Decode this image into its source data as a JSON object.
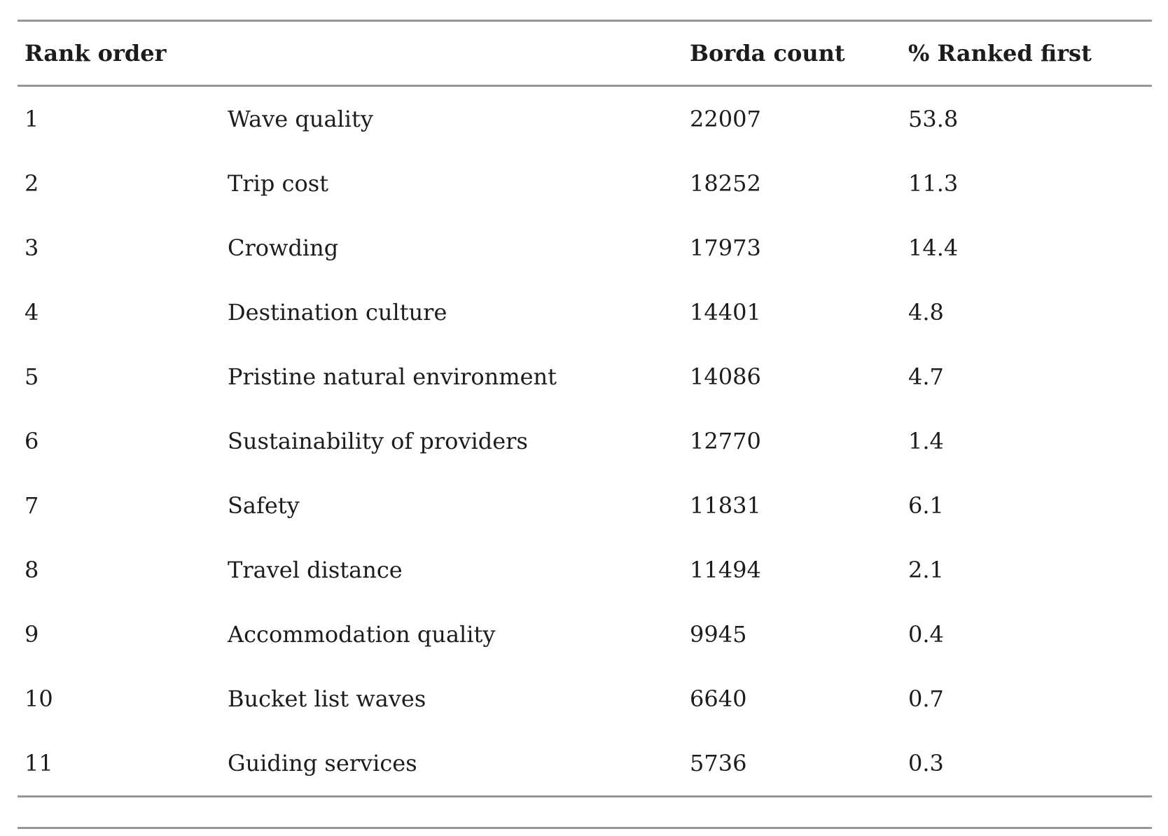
{
  "table": {
    "columns": {
      "rank": "Rank order",
      "attribute": "",
      "borda": "Borda count",
      "pct_first": "% Ranked first"
    },
    "rows": [
      {
        "rank": "1",
        "attribute": "Wave quality",
        "borda": "22007",
        "pct_first": "53.8"
      },
      {
        "rank": "2",
        "attribute": "Trip cost",
        "borda": "18252",
        "pct_first": "11.3"
      },
      {
        "rank": "3",
        "attribute": "Crowding",
        "borda": "17973",
        "pct_first": "14.4"
      },
      {
        "rank": "4",
        "attribute": "Destination culture",
        "borda": "14401",
        "pct_first": "4.8"
      },
      {
        "rank": "5",
        "attribute": "Pristine natural environment",
        "borda": "14086",
        "pct_first": "4.7"
      },
      {
        "rank": "6",
        "attribute": "Sustainability of providers",
        "borda": "12770",
        "pct_first": "1.4"
      },
      {
        "rank": "7",
        "attribute": "Safety",
        "borda": "11831",
        "pct_first": "6.1"
      },
      {
        "rank": "8",
        "attribute": "Travel distance",
        "borda": "11494",
        "pct_first": "2.1"
      },
      {
        "rank": "9",
        "attribute": "Accommodation quality",
        "borda": "9945",
        "pct_first": "0.4"
      },
      {
        "rank": "10",
        "attribute": "Bucket list waves",
        "borda": "6640",
        "pct_first": "0.7"
      },
      {
        "rank": "11",
        "attribute": "Guiding services",
        "borda": "5736",
        "pct_first": "0.3"
      }
    ]
  },
  "colors": {
    "text": "#1c1c1c",
    "rule": "#979797",
    "background": "#ffffff"
  }
}
